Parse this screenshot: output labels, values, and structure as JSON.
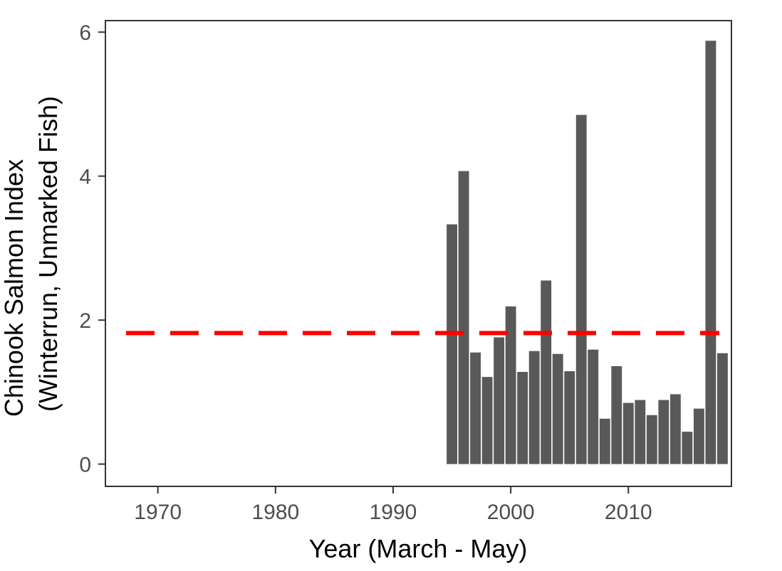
{
  "chart_data": {
    "type": "bar",
    "title": "",
    "xlabel": "Year (March - May)",
    "ylabel_line1": "Chinook Salmon Index",
    "ylabel_line2": "(Winterrun, Unmarked Fish)",
    "xlim": [
      1965.6,
      2018.7
    ],
    "ylim": [
      -0.3,
      6.15
    ],
    "x_ticks": [
      1970,
      1980,
      1990,
      2000,
      2010
    ],
    "y_ticks": [
      0,
      2,
      4,
      6
    ],
    "x": [
      1995,
      1996,
      1997,
      1998,
      1999,
      2000,
      2001,
      2002,
      2003,
      2004,
      2005,
      2006,
      2007,
      2008,
      2009,
      2010,
      2011,
      2012,
      2013,
      2014,
      2015,
      2016,
      2017,
      2018
    ],
    "values": [
      3.33,
      4.07,
      1.55,
      1.21,
      1.76,
      2.19,
      1.28,
      1.57,
      2.55,
      1.53,
      1.29,
      4.85,
      1.59,
      0.63,
      1.36,
      0.85,
      0.89,
      0.68,
      0.89,
      0.97,
      0.45,
      0.77,
      5.88,
      1.54
    ],
    "reference_line": {
      "value": 1.82,
      "style": "dashed"
    },
    "grid": false,
    "colors": {
      "bar": "#595959",
      "reference": "#ff0000",
      "frame": "#333333",
      "ticks": "#333333"
    }
  }
}
